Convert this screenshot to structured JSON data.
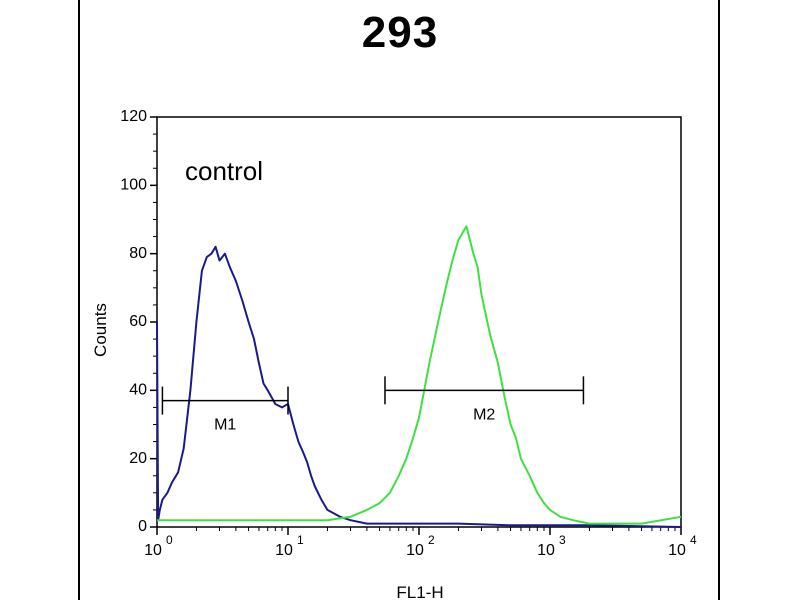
{
  "figure": {
    "title": "293"
  },
  "chart_data": {
    "type": "line",
    "title": "293",
    "xlabel": "FL1-H",
    "ylabel": "Counts",
    "x_scale": "log",
    "xlim": [
      1,
      10000
    ],
    "ylim": [
      0,
      120
    ],
    "y_ticks": [
      "0",
      "20",
      "40",
      "60",
      "80",
      "100",
      "120"
    ],
    "x_ticks": [
      {
        "base": "10",
        "exp": "0",
        "value": 1
      },
      {
        "base": "10",
        "exp": "1",
        "value": 10
      },
      {
        "base": "10",
        "exp": "2",
        "value": 100
      },
      {
        "base": "10",
        "exp": "3",
        "value": 1000
      },
      {
        "base": "10",
        "exp": "4",
        "value": 10000
      }
    ],
    "annotation": "control",
    "series": [
      {
        "color": "#1a1a8c",
        "x": [
          1.0,
          1.02,
          1.05,
          1.1,
          1.2,
          1.3,
          1.45,
          1.6,
          1.8,
          2.0,
          2.2,
          2.4,
          2.6,
          2.8,
          3.0,
          3.3,
          3.6,
          4.0,
          4.5,
          5.0,
          5.5,
          6.0,
          6.5,
          7.0,
          7.5,
          8.0,
          9.0,
          10,
          11,
          12,
          13,
          14,
          15,
          16,
          18,
          20,
          25,
          30,
          40,
          60,
          100,
          200,
          500,
          1000,
          2000,
          10000
        ],
        "y": [
          60,
          2,
          5,
          8,
          10,
          13,
          16,
          23,
          40,
          60,
          75,
          79,
          80,
          82,
          78,
          80,
          76,
          72,
          66,
          60,
          55,
          48,
          42,
          40,
          38,
          36,
          35,
          36,
          30,
          25,
          22,
          19,
          15,
          12,
          8,
          5,
          3,
          2,
          1,
          1,
          1,
          1,
          0.5,
          0.5,
          0.5,
          0
        ]
      },
      {
        "color": "#40e040",
        "x": [
          1,
          2,
          5,
          10,
          20,
          30,
          40,
          50,
          60,
          70,
          80,
          90,
          100,
          120,
          140,
          160,
          180,
          200,
          230,
          260,
          280,
          300,
          350,
          400,
          450,
          500,
          550,
          600,
          700,
          800,
          900,
          1000,
          1200,
          1500,
          2000,
          3000,
          5000,
          10000
        ],
        "y": [
          2,
          2,
          2,
          2,
          2,
          3,
          5,
          7,
          10,
          15,
          20,
          26,
          32,
          48,
          60,
          70,
          78,
          84,
          88,
          80,
          76,
          68,
          56,
          48,
          38,
          30,
          26,
          20,
          15,
          10,
          7,
          5,
          3,
          2,
          1,
          1,
          1,
          3
        ]
      }
    ],
    "markers": [
      {
        "label": "M1",
        "x_start": 1.1,
        "x_end": 10,
        "y": 37
      },
      {
        "label": "M2",
        "x_start": 55,
        "x_end": 1800,
        "y": 40
      }
    ]
  }
}
